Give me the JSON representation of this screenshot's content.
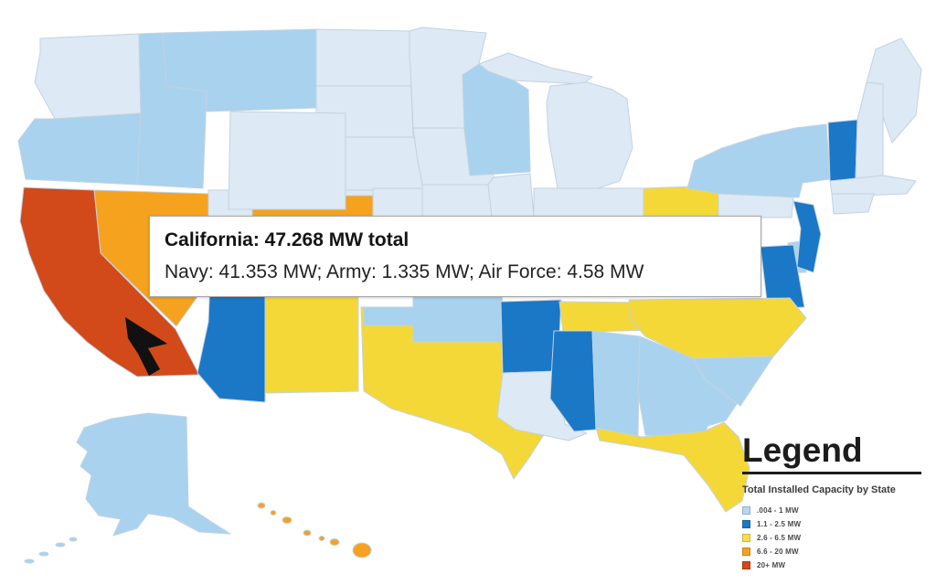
{
  "tooltip": {
    "title": "California: 47.268 MW total",
    "detail": "Navy: 41.353 MW; Army: 1.335 MW; Air Force: 4.58 MW"
  },
  "legend": {
    "title": "Legend",
    "subtitle": "Total Installed Capacity by State",
    "items": [
      {
        "label": ".004 - 1 MW",
        "color": "#b5d9f3"
      },
      {
        "label": "1.1 - 2.5 MW",
        "color": "#1a78c6"
      },
      {
        "label": "2.6 - 6.5 MW",
        "color": "#f9dc4e"
      },
      {
        "label": "6.6 - 20 MW",
        "color": "#f5a21f"
      },
      {
        "label": "20+ MW",
        "color": "#d2491a"
      }
    ]
  },
  "palette": {
    "none": "#dde9f4",
    "low": "#a9d2ee",
    "mid": "#1a78c6",
    "high": "#f4d838",
    "higher": "#f5a21f",
    "highest": "#d2491a"
  },
  "map": {
    "states": [
      {
        "id": "wa",
        "name": "Washington",
        "level": "none"
      },
      {
        "id": "or",
        "name": "Oregon",
        "level": "low"
      },
      {
        "id": "ca",
        "name": "California",
        "level": "highest"
      },
      {
        "id": "nv",
        "name": "Nevada",
        "level": "higher"
      },
      {
        "id": "id",
        "name": "Idaho",
        "level": "low"
      },
      {
        "id": "mt",
        "name": "Montana",
        "level": "low"
      },
      {
        "id": "wy",
        "name": "Wyoming",
        "level": "none"
      },
      {
        "id": "ut",
        "name": "Utah",
        "level": "higher"
      },
      {
        "id": "co",
        "name": "Colorado",
        "level": "none"
      },
      {
        "id": "az",
        "name": "Arizona",
        "level": "mid"
      },
      {
        "id": "nm",
        "name": "New Mexico",
        "level": "high"
      },
      {
        "id": "tx",
        "name": "Texas",
        "level": "high"
      },
      {
        "id": "ok",
        "name": "Oklahoma",
        "level": "low"
      },
      {
        "id": "ks",
        "name": "Kansas",
        "level": "none"
      },
      {
        "id": "ne",
        "name": "Nebraska",
        "level": "none"
      },
      {
        "id": "sd",
        "name": "South Dakota",
        "level": "none"
      },
      {
        "id": "nd",
        "name": "North Dakota",
        "level": "none"
      },
      {
        "id": "mn",
        "name": "Minnesota",
        "level": "none"
      },
      {
        "id": "ia",
        "name": "Iowa",
        "level": "none"
      },
      {
        "id": "mo",
        "name": "Missouri",
        "level": "none"
      },
      {
        "id": "wi",
        "name": "Wisconsin",
        "level": "low"
      },
      {
        "id": "il",
        "name": "Illinois",
        "level": "none"
      },
      {
        "id": "mi",
        "name": "Michigan",
        "level": "none"
      },
      {
        "id": "in",
        "name": "Indiana",
        "level": "none"
      },
      {
        "id": "oh",
        "name": "Ohio",
        "level": "high"
      },
      {
        "id": "pa",
        "name": "Pennsylvania",
        "level": "none"
      },
      {
        "id": "ny",
        "name": "New York",
        "level": "low"
      },
      {
        "id": "vt",
        "name": "Vermont",
        "level": "mid"
      },
      {
        "id": "nh",
        "name": "New Hampshire",
        "level": "none"
      },
      {
        "id": "me",
        "name": "Maine",
        "level": "none"
      },
      {
        "id": "ma",
        "name": "Massachusetts",
        "level": "none"
      },
      {
        "id": "ct",
        "name": "Connecticut / Rhode Island",
        "level": "none"
      },
      {
        "id": "nj",
        "name": "New Jersey",
        "level": "mid"
      },
      {
        "id": "de",
        "name": "Delaware",
        "level": "low"
      },
      {
        "id": "md",
        "name": "Maryland",
        "level": "mid"
      },
      {
        "id": "tn",
        "name": "Tennessee",
        "level": "high"
      },
      {
        "id": "nc",
        "name": "North Carolina",
        "level": "high"
      },
      {
        "id": "sc",
        "name": "South Carolina",
        "level": "low"
      },
      {
        "id": "ga",
        "name": "Georgia",
        "level": "low"
      },
      {
        "id": "al",
        "name": "Alabama",
        "level": "low"
      },
      {
        "id": "ms",
        "name": "Mississippi",
        "level": "mid"
      },
      {
        "id": "ar",
        "name": "Arkansas",
        "level": "mid"
      },
      {
        "id": "la",
        "name": "Louisiana",
        "level": "none"
      },
      {
        "id": "fl",
        "name": "Florida",
        "level": "high"
      },
      {
        "id": "ak",
        "name": "Alaska",
        "level": "low"
      },
      {
        "id": "hi",
        "name": "Hawaii",
        "level": "higher"
      }
    ]
  },
  "chart_data": {
    "type": "choropleth",
    "title": "Total Installed Capacity by State",
    "bins": [
      ".004 - 1 MW",
      "1.1 - 2.5 MW",
      "2.6 - 6.5 MW",
      "6.6 - 20 MW",
      "20+ MW"
    ],
    "highlighted_state": {
      "name": "California",
      "total_mw": 47.268,
      "navy_mw": 41.353,
      "army_mw": 1.335,
      "air_force_mw": 4.58
    }
  }
}
